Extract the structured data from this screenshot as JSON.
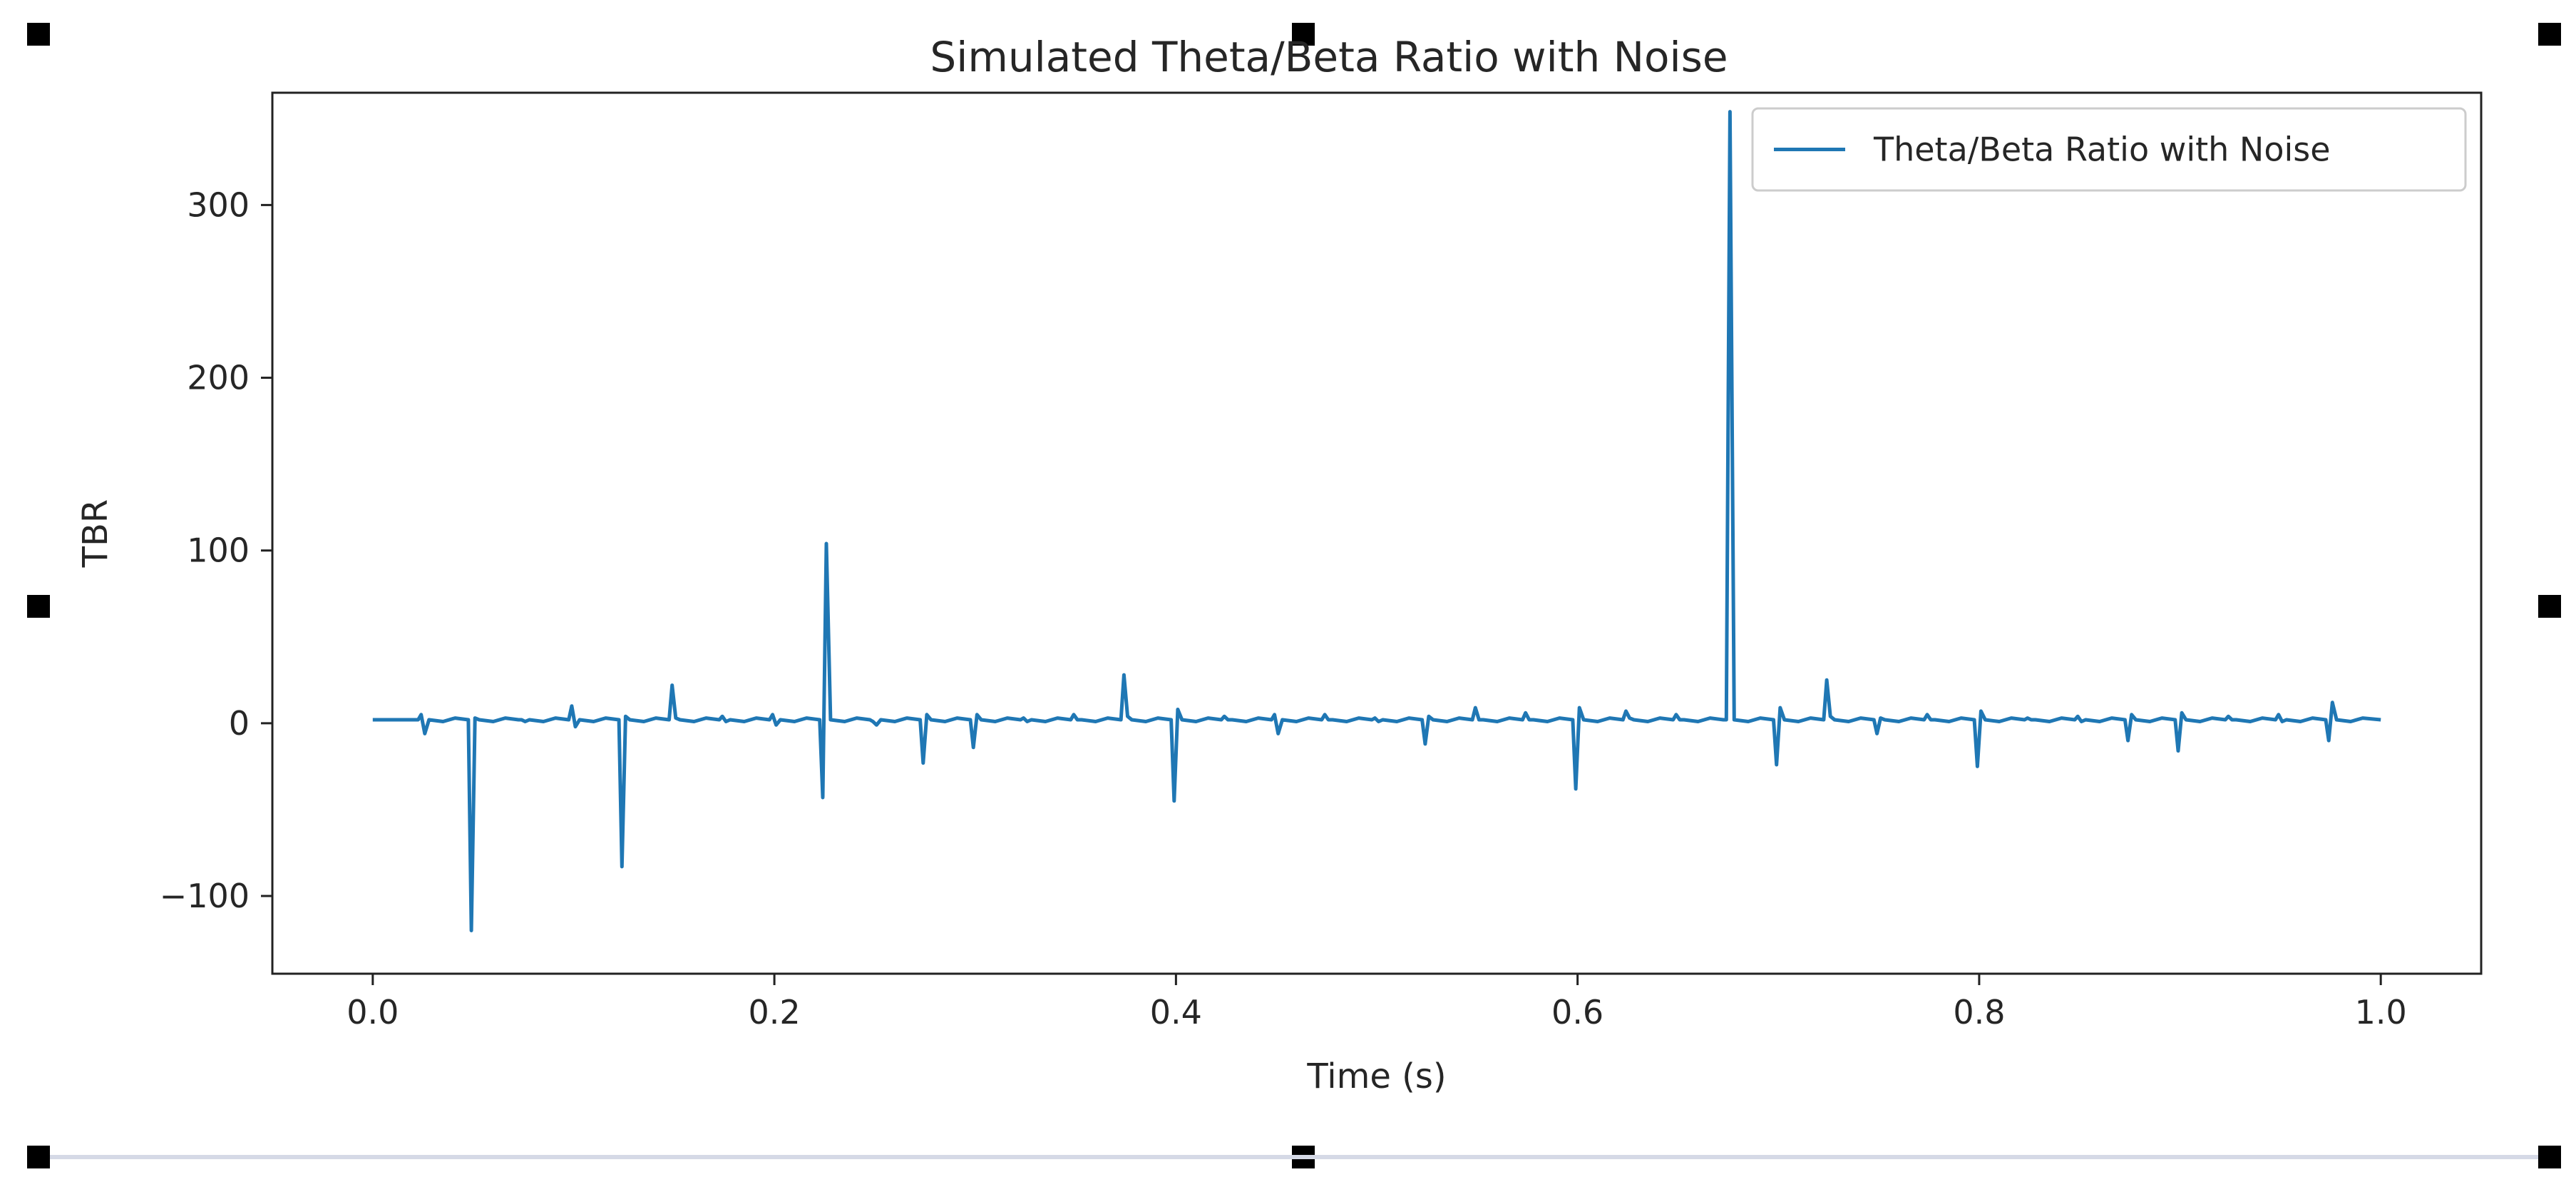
{
  "chart_data": {
    "type": "line",
    "title": "Simulated Theta/Beta Ratio with Noise",
    "xlabel": "Time (s)",
    "ylabel": "TBR",
    "xlim": [
      -0.05,
      1.05
    ],
    "ylim": [
      -145,
      365
    ],
    "x_ticks": [
      0.0,
      0.2,
      0.4,
      0.6,
      0.8,
      1.0
    ],
    "x_tick_labels": [
      "0.0",
      "0.2",
      "0.4",
      "0.6",
      "0.8",
      "1.0"
    ],
    "y_ticks": [
      -100,
      0,
      100,
      200,
      300
    ],
    "y_tick_labels": [
      "−100",
      "0",
      "100",
      "200",
      "300"
    ],
    "grid": false,
    "legend_position": "top-right",
    "series": [
      {
        "name": "Theta/Beta Ratio with Noise",
        "color": "#1f77b4",
        "base_value": 2,
        "x_start": 0.0,
        "x_end": 1.0,
        "spikes": [
          {
            "x": 0.025,
            "values": [
              5,
              -6
            ]
          },
          {
            "x": 0.05,
            "values": [
              -120,
              3
            ]
          },
          {
            "x": 0.075,
            "values": [
              2,
              1
            ]
          },
          {
            "x": 0.1,
            "values": [
              10,
              -2
            ]
          },
          {
            "x": 0.125,
            "values": [
              -83,
              4
            ]
          },
          {
            "x": 0.15,
            "values": [
              22,
              3
            ]
          },
          {
            "x": 0.175,
            "values": [
              4,
              1
            ]
          },
          {
            "x": 0.2,
            "values": [
              5,
              -1
            ]
          },
          {
            "x": 0.225,
            "values": [
              -43,
              104
            ]
          },
          {
            "x": 0.25,
            "values": [
              1,
              -1
            ]
          },
          {
            "x": 0.275,
            "values": [
              -23,
              5
            ]
          },
          {
            "x": 0.3,
            "values": [
              -14,
              5
            ]
          },
          {
            "x": 0.325,
            "values": [
              3,
              1
            ]
          },
          {
            "x": 0.35,
            "values": [
              5,
              2
            ]
          },
          {
            "x": 0.375,
            "values": [
              28,
              4
            ]
          },
          {
            "x": 0.4,
            "values": [
              -45,
              8
            ]
          },
          {
            "x": 0.425,
            "values": [
              4,
              2
            ]
          },
          {
            "x": 0.45,
            "values": [
              5,
              -6
            ]
          },
          {
            "x": 0.475,
            "values": [
              5,
              2
            ]
          },
          {
            "x": 0.5,
            "values": [
              3,
              1
            ]
          },
          {
            "x": 0.525,
            "values": [
              -12,
              4
            ]
          },
          {
            "x": 0.55,
            "values": [
              9,
              2
            ]
          },
          {
            "x": 0.575,
            "values": [
              6,
              2
            ]
          },
          {
            "x": 0.6,
            "values": [
              -38,
              9
            ]
          },
          {
            "x": 0.625,
            "values": [
              7,
              3
            ]
          },
          {
            "x": 0.65,
            "values": [
              5,
              2
            ]
          },
          {
            "x": 0.675,
            "values": [
              2,
              354
            ]
          },
          {
            "x": 0.7,
            "values": [
              -24,
              9
            ]
          },
          {
            "x": 0.725,
            "values": [
              25,
              4
            ]
          },
          {
            "x": 0.75,
            "values": [
              -6,
              3
            ]
          },
          {
            "x": 0.775,
            "values": [
              5,
              2
            ]
          },
          {
            "x": 0.8,
            "values": [
              -25,
              7
            ]
          },
          {
            "x": 0.825,
            "values": [
              3,
              2
            ]
          },
          {
            "x": 0.85,
            "values": [
              4,
              1
            ]
          },
          {
            "x": 0.875,
            "values": [
              -10,
              5
            ]
          },
          {
            "x": 0.9,
            "values": [
              -16,
              6
            ]
          },
          {
            "x": 0.925,
            "values": [
              4,
              2
            ]
          },
          {
            "x": 0.95,
            "values": [
              5,
              1
            ]
          },
          {
            "x": 0.975,
            "values": [
              -10,
              12
            ]
          }
        ]
      }
    ]
  }
}
